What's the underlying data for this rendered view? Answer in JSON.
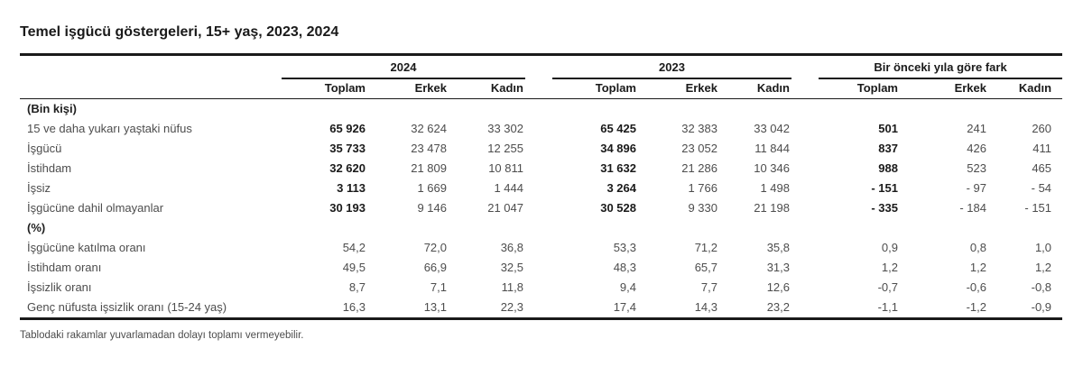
{
  "chart_data": {
    "type": "table",
    "title": "Temel işgücü göstergeleri, 15+ yaş, 2023, 2024",
    "column_groups": [
      "2024",
      "2023",
      "Bir önceki yıla göre fark"
    ],
    "sub_columns": [
      "Toplam",
      "Erkek",
      "Kadın"
    ],
    "sections": [
      {
        "label": "(Bin kişi)",
        "bold_totals": true,
        "rows": [
          {
            "label": "15 ve daha yukarı yaştaki nüfus",
            "values": [
              "65 926",
              "32 624",
              "33 302",
              "65 425",
              "32 383",
              "33 042",
              "501",
              "241",
              "260"
            ]
          },
          {
            "label": "İşgücü",
            "values": [
              "35 733",
              "23 478",
              "12 255",
              "34 896",
              "23 052",
              "11 844",
              "837",
              "426",
              "411"
            ]
          },
          {
            "label": "İstihdam",
            "values": [
              "32 620",
              "21 809",
              "10 811",
              "31 632",
              "21 286",
              "10 346",
              "988",
              "523",
              "465"
            ]
          },
          {
            "label": "İşsiz",
            "values": [
              "3 113",
              "1 669",
              "1 444",
              "3 264",
              "1 766",
              "1 498",
              "- 151",
              "- 97",
              "- 54"
            ]
          },
          {
            "label": "İşgücüne dahil olmayanlar",
            "values": [
              "30 193",
              "9 146",
              "21 047",
              "30 528",
              "9 330",
              "21 198",
              "- 335",
              "- 184",
              "- 151"
            ]
          }
        ]
      },
      {
        "label": "(%)",
        "bold_totals": false,
        "rows": [
          {
            "label": "İşgücüne katılma oranı",
            "values": [
              "54,2",
              "72,0",
              "36,8",
              "53,3",
              "71,2",
              "35,8",
              "0,9",
              "0,8",
              "1,0"
            ]
          },
          {
            "label": "İstihdam oranı",
            "values": [
              "49,5",
              "66,9",
              "32,5",
              "48,3",
              "65,7",
              "31,3",
              "1,2",
              "1,2",
              "1,2"
            ]
          },
          {
            "label": "İşsizlik oranı",
            "values": [
              "8,7",
              "7,1",
              "11,8",
              "9,4",
              "7,7",
              "12,6",
              "-0,7",
              "-0,6",
              "-0,8"
            ]
          },
          {
            "label": "Genç nüfusta işsizlik oranı (15-24 yaş)",
            "values": [
              "16,3",
              "13,1",
              "22,3",
              "17,4",
              "14,3",
              "23,2",
              "-1,1",
              "-1,2",
              "-0,9"
            ]
          }
        ]
      }
    ],
    "footnote": "Tablodaki rakamlar yuvarlamadan dolayı toplamı vermeyebilir."
  },
  "colors": {
    "rule": "#1a1a1a",
    "text_bold": "#1a1a1a",
    "text_regular": "#4d4d4d",
    "background": "#ffffff"
  }
}
